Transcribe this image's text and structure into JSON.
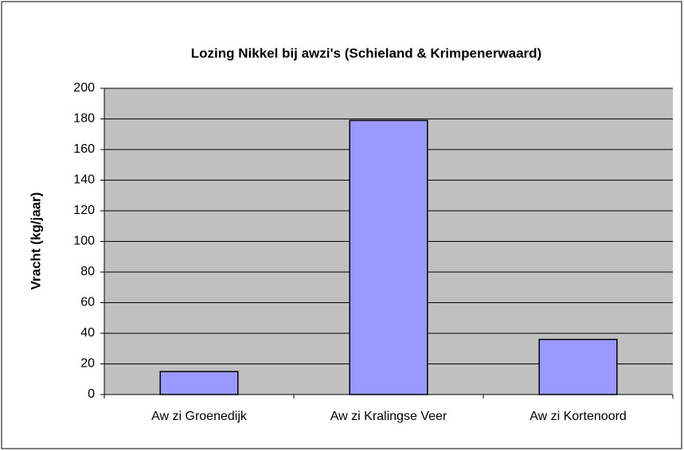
{
  "chart_data": {
    "type": "bar",
    "title": "Lozing Nikkel bij awzi's (Schieland & Krimpenerwaard)",
    "y_label": "Vracht (kg/jaar)",
    "categories": [
      "Aw zi Groenedijk",
      "Aw zi Kralingse Veer",
      "Aw zi Kortenoord"
    ],
    "values": [
      15,
      179,
      36
    ],
    "color": "#9999ff",
    "ylim": [
      0,
      200
    ],
    "yticks": [
      0,
      20,
      40,
      60,
      80,
      100,
      120,
      140,
      160,
      180,
      200
    ],
    "grid": true
  }
}
